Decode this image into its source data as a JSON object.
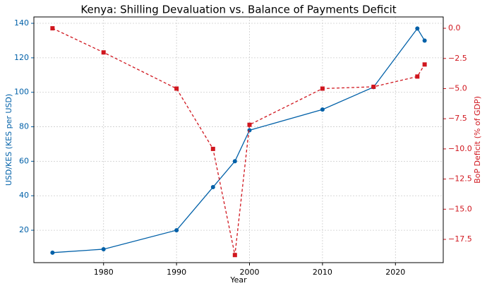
{
  "chart_data": {
    "type": "line",
    "title": "Kenya: Shilling Devaluation vs. Balance of Payments Deficit",
    "x_label": "Year",
    "y_label": "USD/KES (KES per USD)",
    "y2_label": "BoP Deficit (% of GDP)",
    "x": [
      1973,
      1980,
      1990,
      1995,
      1998,
      2000,
      2010,
      2017,
      2023,
      2024
    ],
    "series": [
      {
        "name": "USD/KES",
        "color": "#0060a8",
        "values": [
          7,
          9,
          20,
          45,
          60,
          78,
          90,
          103,
          137,
          130
        ]
      },
      {
        "name": "BoP Deficit",
        "color": "#d0161e",
        "axis": "y2",
        "values": [
          0,
          -2,
          -5,
          -10,
          -18.8,
          -8,
          -5,
          -4.85,
          -4,
          -3
        ]
      }
    ],
    "xlim": [
      1970.45,
      2026.55
    ],
    "xticks": [
      1980,
      1990,
      2000,
      2010,
      2020
    ],
    "ylim": [
      1.2,
      143.7
    ],
    "yticks": [
      20,
      40,
      60,
      80,
      100,
      120,
      140
    ],
    "y2lim": [
      -19.43,
      0.94
    ],
    "y2ticks": [
      {
        "value": 0,
        "label": "0.0"
      },
      {
        "value": -2.5,
        "label": "−2.5"
      },
      {
        "value": -5,
        "label": "−5.0"
      },
      {
        "value": -7.5,
        "label": "−7.5"
      },
      {
        "value": -10,
        "label": "−10.0"
      },
      {
        "value": -12.5,
        "label": "−12.5"
      },
      {
        "value": -15,
        "label": "−15.0"
      },
      {
        "value": -17.5,
        "label": "−17.5"
      }
    ],
    "grid": true
  }
}
